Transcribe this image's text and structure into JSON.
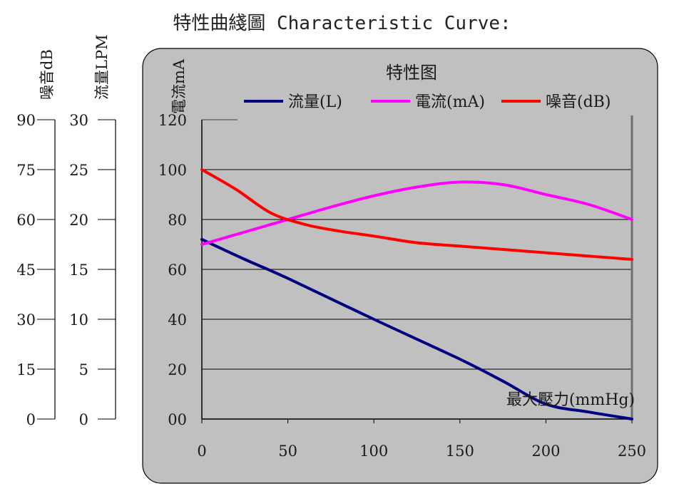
{
  "page": {
    "title": "特性曲綫圖 Characteristic Curve:"
  },
  "colors": {
    "flow": "#000080",
    "current": "#ff00ff",
    "noise": "#ff0000",
    "panel": "#c0c0c0",
    "grid": "#000000"
  },
  "chart_data": {
    "type": "line",
    "title": "特性图",
    "xlabel": "最大壓力(mmHg)",
    "ylabel": "電流mA",
    "xlim": [
      0,
      250
    ],
    "ylim": [
      0,
      120
    ],
    "x_ticks": [
      "0",
      "50",
      "100",
      "150",
      "200",
      "250"
    ],
    "y_ticks": [
      "00",
      "20",
      "40",
      "60",
      "80",
      "100",
      "120"
    ],
    "grid": true,
    "legend_position": "top",
    "extra_axes": [
      {
        "label": "噪音dB",
        "ticks": [
          "0",
          "15",
          "30",
          "45",
          "60",
          "75",
          "90"
        ],
        "range": [
          0,
          90
        ]
      },
      {
        "label": "流量LPM",
        "ticks": [
          "0",
          "5",
          "10",
          "15",
          "20",
          "25",
          "30"
        ],
        "range": [
          0,
          30
        ]
      }
    ],
    "series": [
      {
        "name": "流量(L)",
        "color": "#000080",
        "axis": "LPM",
        "points": [
          [
            0,
            18
          ],
          [
            25,
            16
          ],
          [
            50,
            14.1
          ],
          [
            100,
            10
          ],
          [
            150,
            6
          ],
          [
            175,
            3.8
          ],
          [
            200,
            1.5
          ],
          [
            225,
            0.7
          ],
          [
            250,
            0
          ]
        ]
      },
      {
        "name": "電流(mA)",
        "color": "#ff00ff",
        "axis": "mA",
        "points": [
          [
            0,
            70
          ],
          [
            25,
            75
          ],
          [
            50,
            80
          ],
          [
            75,
            85
          ],
          [
            100,
            89.5
          ],
          [
            125,
            93
          ],
          [
            150,
            95
          ],
          [
            175,
            94
          ],
          [
            200,
            90
          ],
          [
            225,
            86
          ],
          [
            250,
            80
          ]
        ]
      },
      {
        "name": "噪音(dB)",
        "color": "#ff0000",
        "axis": "dB",
        "points": [
          [
            0,
            75
          ],
          [
            20,
            69
          ],
          [
            40,
            62
          ],
          [
            60,
            58.5
          ],
          [
            80,
            56.5
          ],
          [
            100,
            55
          ],
          [
            125,
            53
          ],
          [
            150,
            52
          ],
          [
            175,
            51
          ],
          [
            200,
            50
          ],
          [
            225,
            49
          ],
          [
            250,
            48
          ]
        ]
      }
    ]
  }
}
